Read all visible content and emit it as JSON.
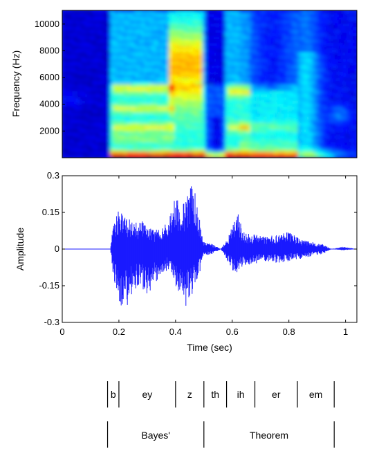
{
  "chart_data": [
    {
      "type": "heatmap",
      "title": "",
      "xlabel": "",
      "ylabel": "Frequency (Hz)",
      "xlim": [
        0,
        1.04
      ],
      "ylim": [
        0,
        11025
      ],
      "yticks": [
        2000,
        4000,
        6000,
        8000,
        10000
      ],
      "ytick_labels": [
        "2000",
        "4000",
        "6000",
        "8000",
        "10000"
      ],
      "colormap": "jet",
      "speech_onset_sec": 0.17
    },
    {
      "type": "line",
      "title": "",
      "xlabel": "Time (sec)",
      "ylabel": "Amplitude",
      "xlim": [
        0,
        1.04
      ],
      "ylim": [
        -0.3,
        0.3
      ],
      "xticks": [
        0,
        0.2,
        0.4,
        0.6,
        0.8,
        1
      ],
      "xtick_labels": [
        "0",
        "0.2",
        "0.4",
        "0.6",
        "0.8",
        "1"
      ],
      "yticks": [
        -0.3,
        -0.15,
        0,
        0.15,
        0.3
      ],
      "ytick_labels": [
        "-0.3",
        "-0.15",
        "0",
        "0.15",
        "0.3"
      ],
      "line_color": "#1a1aff",
      "envelope": [
        {
          "x": 0.0,
          "upper": 0.0,
          "lower": 0.0
        },
        {
          "x": 0.17,
          "upper": 0.0,
          "lower": 0.0
        },
        {
          "x": 0.18,
          "upper": 0.1,
          "lower": -0.12
        },
        {
          "x": 0.2,
          "upper": 0.17,
          "lower": -0.22
        },
        {
          "x": 0.22,
          "upper": 0.14,
          "lower": -0.26
        },
        {
          "x": 0.25,
          "upper": 0.11,
          "lower": -0.17
        },
        {
          "x": 0.28,
          "upper": 0.12,
          "lower": -0.16
        },
        {
          "x": 0.3,
          "upper": 0.09,
          "lower": -0.19
        },
        {
          "x": 0.33,
          "upper": 0.08,
          "lower": -0.14
        },
        {
          "x": 0.36,
          "upper": 0.09,
          "lower": -0.1
        },
        {
          "x": 0.38,
          "upper": 0.16,
          "lower": -0.08
        },
        {
          "x": 0.4,
          "upper": 0.21,
          "lower": -0.18
        },
        {
          "x": 0.42,
          "upper": 0.18,
          "lower": -0.17
        },
        {
          "x": 0.44,
          "upper": 0.22,
          "lower": -0.25
        },
        {
          "x": 0.46,
          "upper": 0.29,
          "lower": -0.2
        },
        {
          "x": 0.48,
          "upper": 0.16,
          "lower": -0.12
        },
        {
          "x": 0.5,
          "upper": 0.03,
          "lower": -0.03
        },
        {
          "x": 0.53,
          "upper": 0.02,
          "lower": -0.02
        },
        {
          "x": 0.56,
          "upper": 0.0,
          "lower": 0.0
        },
        {
          "x": 0.58,
          "upper": 0.04,
          "lower": -0.05
        },
        {
          "x": 0.6,
          "upper": 0.09,
          "lower": -0.09
        },
        {
          "x": 0.62,
          "upper": 0.15,
          "lower": -0.1
        },
        {
          "x": 0.64,
          "upper": 0.07,
          "lower": -0.07
        },
        {
          "x": 0.68,
          "upper": 0.06,
          "lower": -0.06
        },
        {
          "x": 0.72,
          "upper": 0.05,
          "lower": -0.05
        },
        {
          "x": 0.76,
          "upper": 0.06,
          "lower": -0.06
        },
        {
          "x": 0.8,
          "upper": 0.07,
          "lower": -0.05
        },
        {
          "x": 0.84,
          "upper": 0.04,
          "lower": -0.04
        },
        {
          "x": 0.88,
          "upper": 0.03,
          "lower": -0.03
        },
        {
          "x": 0.92,
          "upper": 0.02,
          "lower": -0.02
        },
        {
          "x": 0.95,
          "upper": 0.0,
          "lower": 0.0
        },
        {
          "x": 0.99,
          "upper": 0.01,
          "lower": -0.005
        },
        {
          "x": 1.04,
          "upper": 0.0,
          "lower": 0.0
        }
      ]
    }
  ],
  "phoneme_segments": [
    {
      "label": "b",
      "start": 0.16,
      "end": 0.2
    },
    {
      "label": "ey",
      "start": 0.2,
      "end": 0.4
    },
    {
      "label": "z",
      "start": 0.4,
      "end": 0.5
    },
    {
      "label": "th",
      "start": 0.5,
      "end": 0.58
    },
    {
      "label": "ih",
      "start": 0.58,
      "end": 0.68
    },
    {
      "label": "er",
      "start": 0.68,
      "end": 0.83
    },
    {
      "label": "em",
      "start": 0.83,
      "end": 0.96
    }
  ],
  "word_segments": [
    {
      "label": "Bayes'",
      "start": 0.16,
      "end": 0.5
    },
    {
      "label": "Theorem",
      "start": 0.5,
      "end": 0.96
    }
  ]
}
